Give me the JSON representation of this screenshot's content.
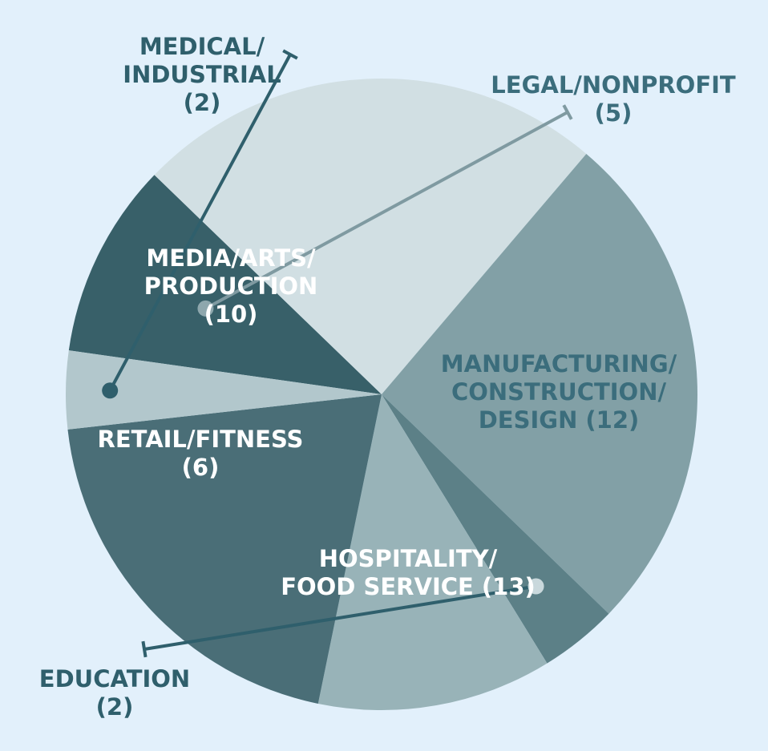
{
  "chart_data": {
    "type": "pie",
    "title": "",
    "legend": "none",
    "slices": [
      {
        "label_lines": [
          "LEGAL/NONPROFIT",
          "(5)"
        ],
        "value": 5,
        "color": "#386069"
      },
      {
        "label_lines": [
          "MANUFACTURING/",
          "CONSTRUCTION/",
          "DESIGN (12)"
        ],
        "value": 12,
        "color": "#d1dfe3"
      },
      {
        "label_lines": [
          "HOSPITALITY/",
          "FOOD SERVICE (13)"
        ],
        "value": 13,
        "color": "#82a0a6"
      },
      {
        "label_lines": [
          "EDUCATION",
          "(2)"
        ],
        "value": 2,
        "color": "#5c8087"
      },
      {
        "label_lines": [
          "RETAIL/FITNESS",
          "(6)"
        ],
        "value": 6,
        "color": "#98b3b8"
      },
      {
        "label_lines": [
          "MEDIA/ARTS/",
          "PRODUCTION",
          "(10)"
        ],
        "value": 10,
        "color": "#4a6e77"
      },
      {
        "label_lines": [
          "MEDICAL/",
          "INDUSTRIAL",
          "(2)"
        ],
        "value": 2,
        "color": "#b2c7cc"
      }
    ]
  }
}
